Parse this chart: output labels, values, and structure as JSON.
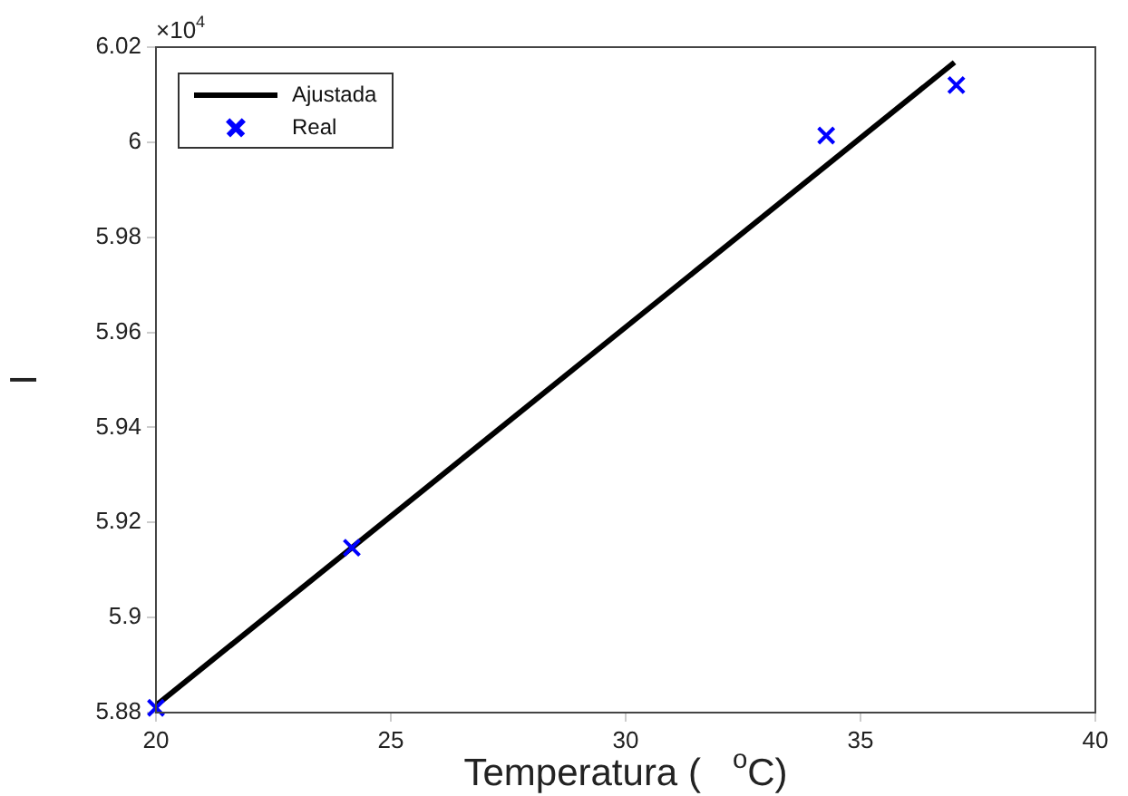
{
  "chart_data": {
    "type": "scatter",
    "xlabel": "Temperatura (   $^{o}$C)",
    "ylabel": "I",
    "annotations": [
      "×10$^{4}$"
    ],
    "xlim": [
      20,
      40
    ],
    "xticks": [
      20,
      25,
      30,
      35,
      40
    ],
    "ylim": [
      5.88,
      6.02
    ],
    "yticks": [
      5.88,
      5.9,
      5.92,
      5.94,
      5.96,
      5.98,
      6,
      6.02
    ],
    "grid": false,
    "legend": "top left",
    "series": [
      {
        "name": "Ajustada",
        "type": "line",
        "color": "#000000",
        "marker": "none",
        "line_style": "solid",
        "x": [
          20,
          37.0
        ],
        "values": [
          5.8815,
          6.0168
        ]
      },
      {
        "name": "Real",
        "color": "#0000ff",
        "marker": "cross",
        "x": [
          20,
          24.17,
          34.27,
          37.04
        ],
        "values": [
          5.881,
          5.9147,
          6.0014,
          6.012
        ]
      }
    ]
  }
}
